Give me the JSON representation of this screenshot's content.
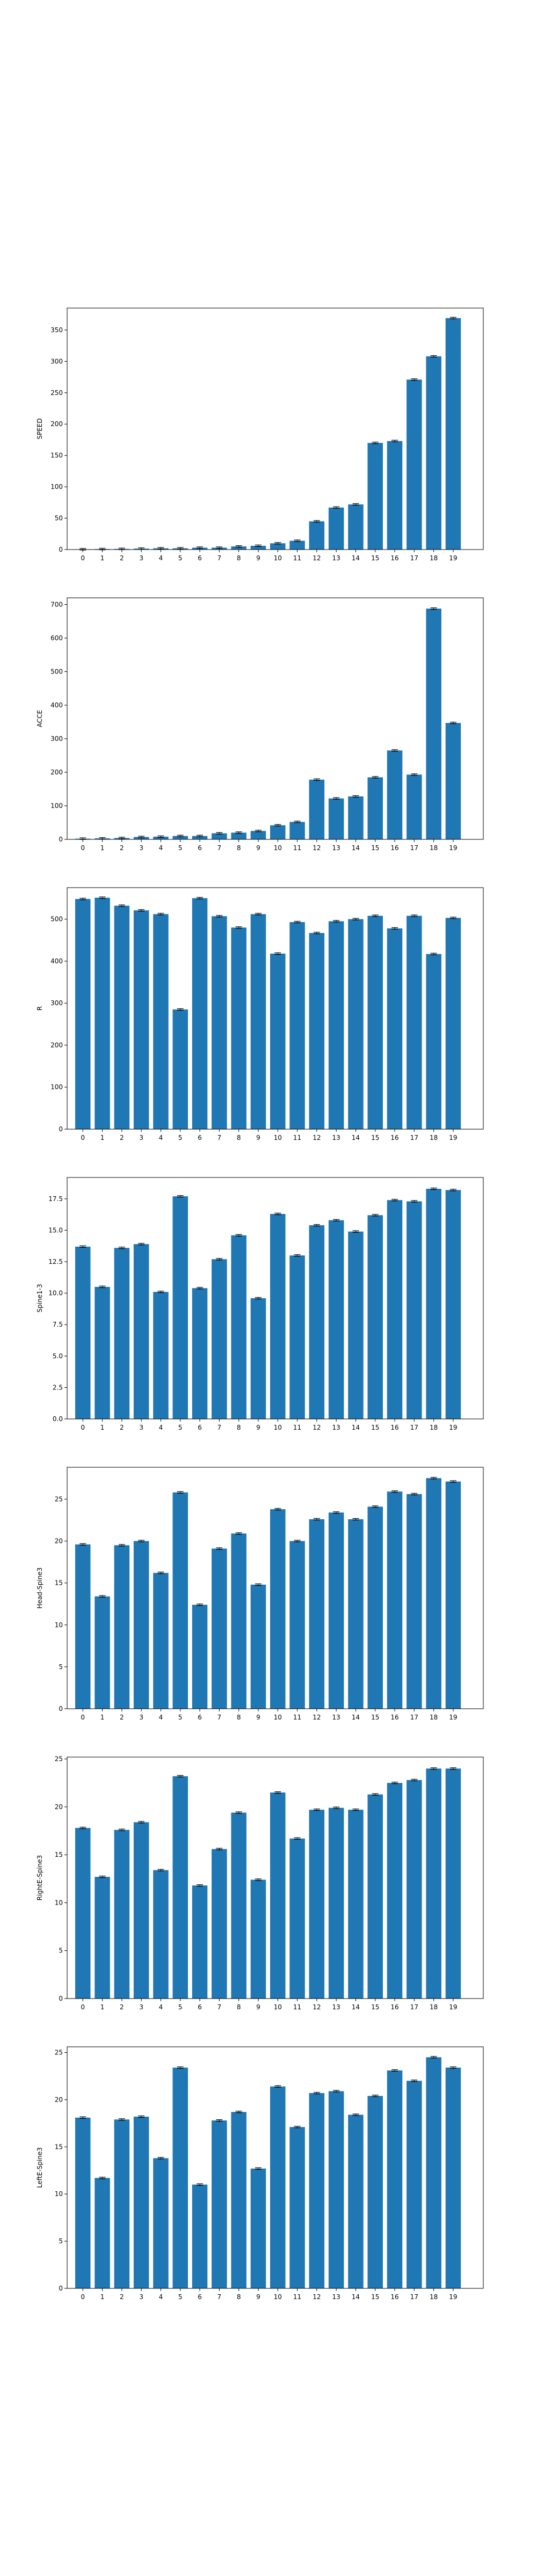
{
  "colors": {
    "bar": "#1f77b4",
    "axis": "#000000",
    "errorbar": "#000000",
    "background": "#ffffff"
  },
  "chart_data": [
    {
      "type": "bar",
      "ylabel": "SPEED",
      "ylim": [
        0,
        385
      ],
      "yticks": [
        0,
        50,
        100,
        150,
        200,
        250,
        300,
        350
      ],
      "ytick_labels": [
        "0",
        "50",
        "100",
        "150",
        "200",
        "250",
        "300",
        "350"
      ],
      "categories": [
        "0",
        "1",
        "2",
        "3",
        "4",
        "5",
        "6",
        "7",
        "8",
        "9",
        "10",
        "11",
        "12",
        "13",
        "14",
        "15",
        "16",
        "17",
        "18",
        "19"
      ],
      "values": [
        0.5,
        0.8,
        1,
        1.5,
        2,
        2,
        3,
        3,
        5,
        6,
        10,
        14,
        45,
        67,
        72,
        170,
        173,
        271,
        308,
        369
      ]
    },
    {
      "type": "bar",
      "ylabel": "ACCE",
      "ylim": [
        0,
        720
      ],
      "yticks": [
        0,
        100,
        200,
        300,
        400,
        500,
        600,
        700
      ],
      "ytick_labels": [
        "0",
        "100",
        "200",
        "300",
        "400",
        "500",
        "600",
        "700"
      ],
      "categories": [
        "0",
        "1",
        "2",
        "3",
        "4",
        "5",
        "6",
        "7",
        "8",
        "9",
        "10",
        "11",
        "12",
        "13",
        "14",
        "15",
        "16",
        "17",
        "18",
        "19"
      ],
      "values": [
        2,
        3,
        4,
        7,
        8,
        10,
        10,
        18,
        20,
        25,
        42,
        52,
        178,
        122,
        128,
        185,
        265,
        193,
        688,
        347
      ]
    },
    {
      "type": "bar",
      "ylabel": "R",
      "ylim": [
        0,
        575
      ],
      "yticks": [
        0,
        100,
        200,
        300,
        400,
        500
      ],
      "ytick_labels": [
        "0",
        "100",
        "200",
        "300",
        "400",
        "500"
      ],
      "categories": [
        "0",
        "1",
        "2",
        "3",
        "4",
        "5",
        "6",
        "7",
        "8",
        "9",
        "10",
        "11",
        "12",
        "13",
        "14",
        "15",
        "16",
        "17",
        "18",
        "19"
      ],
      "values": [
        548,
        551,
        532,
        521,
        512,
        285,
        550,
        507,
        480,
        512,
        418,
        493,
        467,
        495,
        500,
        508,
        478,
        508,
        417,
        503
      ]
    },
    {
      "type": "bar",
      "ylabel": "Spine1-3",
      "ylim": [
        0,
        19.2
      ],
      "yticks": [
        0,
        2.5,
        5,
        7.5,
        10,
        12.5,
        15,
        17.5
      ],
      "ytick_labels": [
        "0.0",
        "2.5",
        "5.0",
        "7.5",
        "10.0",
        "12.5",
        "15.0",
        "17.5"
      ],
      "categories": [
        "0",
        "1",
        "2",
        "3",
        "4",
        "5",
        "6",
        "7",
        "8",
        "9",
        "10",
        "11",
        "12",
        "13",
        "14",
        "15",
        "16",
        "17",
        "18",
        "19"
      ],
      "values": [
        13.7,
        10.5,
        13.6,
        13.9,
        10.1,
        17.7,
        10.4,
        12.7,
        14.6,
        9.6,
        16.3,
        13.0,
        15.4,
        15.8,
        14.9,
        16.2,
        17.4,
        17.3,
        18.3,
        18.2
      ]
    },
    {
      "type": "bar",
      "ylabel": "Head-Spine3",
      "ylim": [
        0,
        28.8
      ],
      "yticks": [
        0,
        5,
        10,
        15,
        20,
        25
      ],
      "ytick_labels": [
        "0",
        "5",
        "10",
        "15",
        "20",
        "25"
      ],
      "categories": [
        "0",
        "1",
        "2",
        "3",
        "4",
        "5",
        "6",
        "7",
        "8",
        "9",
        "10",
        "11",
        "12",
        "13",
        "14",
        "15",
        "16",
        "17",
        "18",
        "19"
      ],
      "values": [
        19.6,
        13.4,
        19.5,
        20.0,
        16.2,
        25.8,
        12.4,
        19.1,
        20.9,
        14.8,
        23.8,
        20.0,
        22.6,
        23.4,
        22.6,
        24.1,
        25.9,
        25.6,
        27.5,
        27.1
      ]
    },
    {
      "type": "bar",
      "ylabel": "RightE-Spine3",
      "ylim": [
        0,
        25.2
      ],
      "yticks": [
        0,
        5,
        10,
        15,
        20,
        25
      ],
      "ytick_labels": [
        "0",
        "5",
        "10",
        "15",
        "20",
        "25"
      ],
      "categories": [
        "0",
        "1",
        "2",
        "3",
        "4",
        "5",
        "6",
        "7",
        "8",
        "9",
        "10",
        "11",
        "12",
        "13",
        "14",
        "15",
        "16",
        "17",
        "18",
        "19"
      ],
      "values": [
        17.8,
        12.7,
        17.6,
        18.4,
        13.4,
        23.2,
        11.8,
        15.6,
        19.4,
        12.4,
        21.5,
        16.7,
        19.7,
        19.9,
        19.7,
        21.3,
        22.5,
        22.8,
        24.0,
        24.0
      ]
    },
    {
      "type": "bar",
      "ylabel": "LeftE-Spine3",
      "ylim": [
        0,
        25.6
      ],
      "yticks": [
        0,
        5,
        10,
        15,
        20,
        25
      ],
      "ytick_labels": [
        "0",
        "5",
        "10",
        "15",
        "20",
        "25"
      ],
      "categories": [
        "0",
        "1",
        "2",
        "3",
        "4",
        "5",
        "6",
        "7",
        "8",
        "9",
        "10",
        "11",
        "12",
        "13",
        "14",
        "15",
        "16",
        "17",
        "18",
        "19"
      ],
      "values": [
        18.1,
        11.7,
        17.9,
        18.2,
        13.8,
        23.4,
        11.0,
        17.8,
        18.7,
        12.7,
        21.4,
        17.1,
        20.7,
        20.9,
        18.4,
        20.4,
        23.1,
        22.0,
        24.5,
        23.4
      ]
    }
  ]
}
